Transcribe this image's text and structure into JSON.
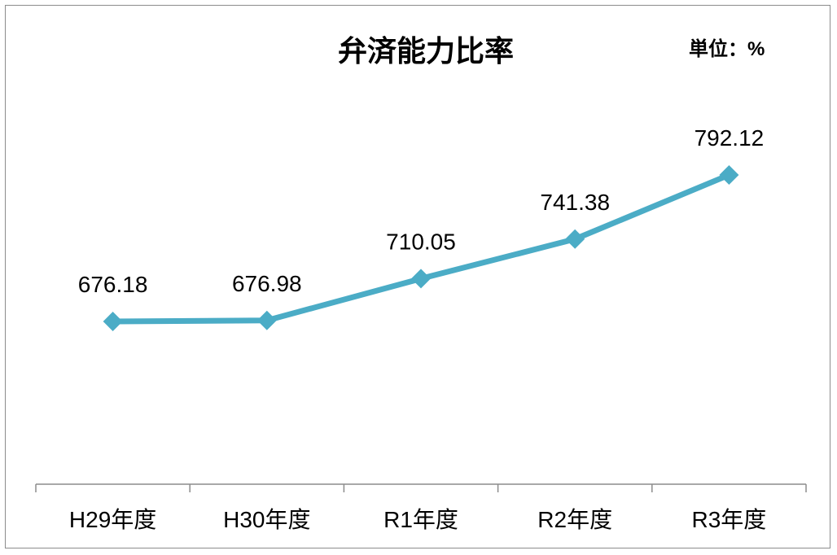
{
  "chart_data": {
    "type": "line",
    "title": "弁済能力比率",
    "unit_label": "単位：%",
    "categories": [
      "H29年度",
      "H30年度",
      "R1年度",
      "R2年度",
      "R3年度"
    ],
    "series": [
      {
        "values": [
          676.18,
          676.98,
          710.05,
          741.38,
          792.12
        ],
        "labels": [
          "676.18",
          "676.98",
          "710.05",
          "741.38",
          "792.12"
        ]
      }
    ],
    "line_color": "#4BACC6",
    "xlabel": "",
    "ylabel": "",
    "grid": false,
    "legend": "none"
  }
}
